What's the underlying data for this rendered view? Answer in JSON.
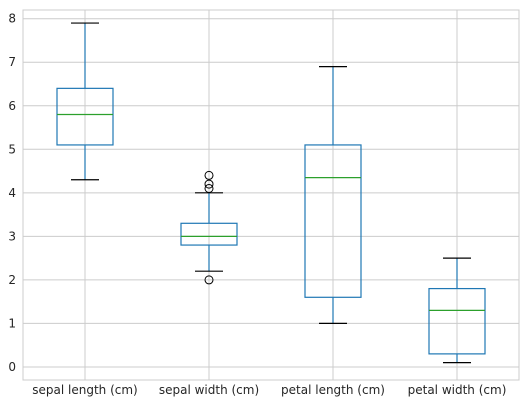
{
  "chart_data": {
    "type": "box",
    "title": "",
    "xlabel": "",
    "ylabel": "",
    "ylim": [
      -0.3,
      8.2
    ],
    "yticks": [
      0,
      1,
      2,
      3,
      4,
      5,
      6,
      7,
      8
    ],
    "grid": true,
    "colors": {
      "box": "#1f77b4",
      "median": "#2ca02c",
      "whisker": "#1f77b4",
      "cap": "#000000",
      "flier": "#000000",
      "grid": "#cccccc",
      "axes": "#cccccc",
      "tick_label": "#262626"
    },
    "categories": [
      "sepal length (cm)",
      "sepal width (cm)",
      "petal length (cm)",
      "petal width (cm)"
    ],
    "boxes": [
      {
        "label": "sepal length (cm)",
        "whislo": 4.3,
        "q1": 5.1,
        "med": 5.8,
        "q3": 6.4,
        "whishi": 7.9,
        "fliers": []
      },
      {
        "label": "sepal width (cm)",
        "whislo": 2.2,
        "q1": 2.8,
        "med": 3.0,
        "q3": 3.3,
        "whishi": 4.0,
        "fliers": [
          2.0,
          4.1,
          4.2,
          4.4
        ]
      },
      {
        "label": "petal length (cm)",
        "whislo": 1.0,
        "q1": 1.6,
        "med": 4.35,
        "q3": 5.1,
        "whishi": 6.9,
        "fliers": []
      },
      {
        "label": "petal width (cm)",
        "whislo": 0.1,
        "q1": 0.3,
        "med": 1.3,
        "q3": 1.8,
        "whishi": 2.5,
        "fliers": []
      }
    ]
  }
}
